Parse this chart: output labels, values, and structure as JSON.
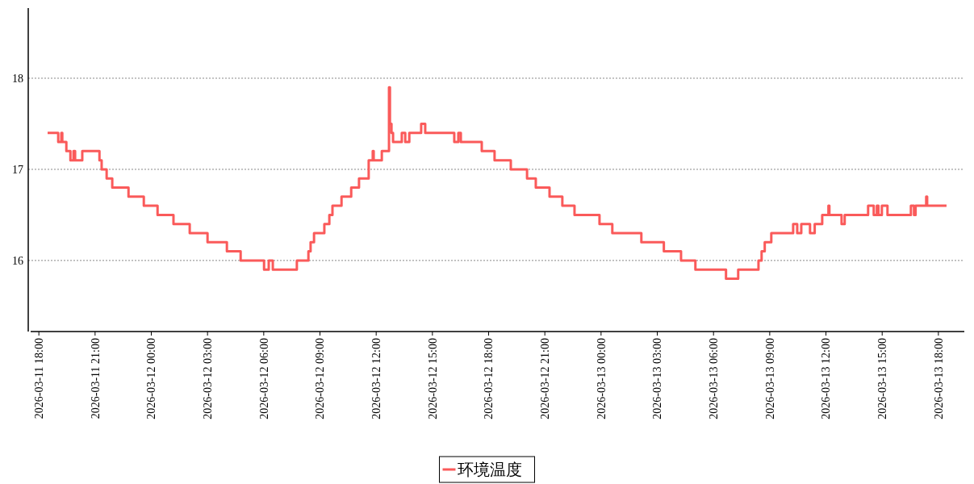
{
  "chart_data": {
    "type": "step",
    "xlim": [
      "2026-03-11T17:26",
      "2026-03-13T19:23"
    ],
    "ylim": [
      15.22,
      18.77
    ],
    "yticks": [
      16,
      17,
      18
    ],
    "grid": "y",
    "legend": "bottom",
    "line_style": "solid",
    "marker": "none",
    "xticks": [
      {
        "value": "2026-03-11T18:00",
        "label": "2026-03-11 18:00"
      },
      {
        "value": "2026-03-11T21:00",
        "label": "2026-03-11 21:00"
      },
      {
        "value": "2026-03-12T00:00",
        "label": "2026-03-12 00:00"
      },
      {
        "value": "2026-03-12T03:00",
        "label": "2026-03-12 03:00"
      },
      {
        "value": "2026-03-12T06:00",
        "label": "2026-03-12 06:00"
      },
      {
        "value": "2026-03-12T09:00",
        "label": "2026-03-12 09:00"
      },
      {
        "value": "2026-03-12T12:00",
        "label": "2026-03-12 12:00"
      },
      {
        "value": "2026-03-12T15:00",
        "label": "2026-03-12 15:00"
      },
      {
        "value": "2026-03-12T18:00",
        "label": "2026-03-12 18:00"
      },
      {
        "value": "2026-03-12T21:00",
        "label": "2026-03-12 21:00"
      },
      {
        "value": "2026-03-13T00:00",
        "label": "2026-03-13 00:00"
      },
      {
        "value": "2026-03-13T03:00",
        "label": "2026-03-13 03:00"
      },
      {
        "value": "2026-03-13T06:00",
        "label": "2026-03-13 06:00"
      },
      {
        "value": "2026-03-13T09:00",
        "label": "2026-03-13 09:00"
      },
      {
        "value": "2026-03-13T12:00",
        "label": "2026-03-13 12:00"
      },
      {
        "value": "2026-03-13T15:00",
        "label": "2026-03-13 15:00"
      },
      {
        "value": "2026-03-13T18:00",
        "label": "2026-03-13 18:00"
      }
    ],
    "series": [
      {
        "name": "环境温度",
        "color": "#fa5a5a",
        "x": [
          "2026-03-11T18:28",
          "2026-03-11T19:02",
          "2026-03-11T19:12",
          "2026-03-11T19:15",
          "2026-03-11T19:28",
          "2026-03-11T19:41",
          "2026-03-11T19:51",
          "2026-03-11T19:56",
          "2026-03-11T20:19",
          "2026-03-11T21:14",
          "2026-03-11T21:21",
          "2026-03-11T21:37",
          "2026-03-11T21:55",
          "2026-03-11T22:47",
          "2026-03-11T23:36",
          "2026-03-12T00:20",
          "2026-03-12T01:11",
          "2026-03-12T02:03",
          "2026-03-12T03:00",
          "2026-03-12T04:02",
          "2026-03-12T04:46",
          "2026-03-12T06:01",
          "2026-03-12T06:16",
          "2026-03-12T06:29",
          "2026-03-12T07:46",
          "2026-03-12T08:23",
          "2026-03-12T08:30",
          "2026-03-12T08:41",
          "2026-03-12T09:14",
          "2026-03-12T09:30",
          "2026-03-12T09:40",
          "2026-03-12T10:09",
          "2026-03-12T10:40",
          "2026-03-12T11:05",
          "2026-03-12T11:36",
          "2026-03-12T11:49",
          "2026-03-12T11:52",
          "2026-03-12T12:18",
          "2026-03-12T12:41",
          "2026-03-12T12:44",
          "2026-03-12T12:49",
          "2026-03-12T12:54",
          "2026-03-12T13:22",
          "2026-03-12T13:33",
          "2026-03-12T13:46",
          "2026-03-12T14:24",
          "2026-03-12T14:37",
          "2026-03-12T16:10",
          "2026-03-12T16:23",
          "2026-03-12T16:31",
          "2026-03-12T17:38",
          "2026-03-12T18:19",
          "2026-03-12T19:11",
          "2026-03-12T20:03",
          "2026-03-12T20:31",
          "2026-03-12T21:15",
          "2026-03-12T21:56",
          "2026-03-12T22:35",
          "2026-03-12T23:55",
          "2026-03-13T00:36",
          "2026-03-13T02:09",
          "2026-03-13T03:21",
          "2026-03-13T04:16",
          "2026-03-13T05:02",
          "2026-03-13T06:40",
          "2026-03-13T07:19",
          "2026-03-13T08:24",
          "2026-03-13T08:34",
          "2026-03-13T08:44",
          "2026-03-13T09:05",
          "2026-03-13T10:15",
          "2026-03-13T10:28",
          "2026-03-13T10:41",
          "2026-03-13T11:09",
          "2026-03-13T11:24",
          "2026-03-13T11:48",
          "2026-03-13T12:08",
          "2026-03-13T12:11",
          "2026-03-13T12:50",
          "2026-03-13T13:00",
          "2026-03-13T14:15",
          "2026-03-13T14:33",
          "2026-03-13T14:43",
          "2026-03-13T14:48",
          "2026-03-13T14:59",
          "2026-03-13T15:17",
          "2026-03-13T16:32",
          "2026-03-13T16:42",
          "2026-03-13T16:47",
          "2026-03-13T17:21",
          "2026-03-13T17:24",
          "2026-03-13T18:26"
        ],
        "values": [
          17.4,
          17.3,
          17.4,
          17.3,
          17.2,
          17.1,
          17.2,
          17.1,
          17.2,
          17.1,
          17.0,
          16.9,
          16.8,
          16.7,
          16.6,
          16.5,
          16.4,
          16.3,
          16.2,
          16.1,
          16.0,
          15.9,
          16.0,
          15.9,
          16.0,
          16.1,
          16.2,
          16.3,
          16.4,
          16.5,
          16.6,
          16.7,
          16.8,
          16.9,
          17.1,
          17.2,
          17.1,
          17.2,
          17.9,
          17.5,
          17.4,
          17.3,
          17.4,
          17.3,
          17.4,
          17.5,
          17.4,
          17.3,
          17.4,
          17.3,
          17.2,
          17.1,
          17.0,
          16.9,
          16.8,
          16.7,
          16.6,
          16.5,
          16.4,
          16.3,
          16.2,
          16.1,
          16.0,
          15.9,
          15.8,
          15.9,
          16.0,
          16.1,
          16.2,
          16.3,
          16.4,
          16.3,
          16.4,
          16.3,
          16.4,
          16.5,
          16.6,
          16.5,
          16.4,
          16.5,
          16.6,
          16.5,
          16.6,
          16.5,
          16.6,
          16.5,
          16.6,
          16.5,
          16.6,
          16.7,
          16.6,
          16.6
        ]
      }
    ]
  }
}
